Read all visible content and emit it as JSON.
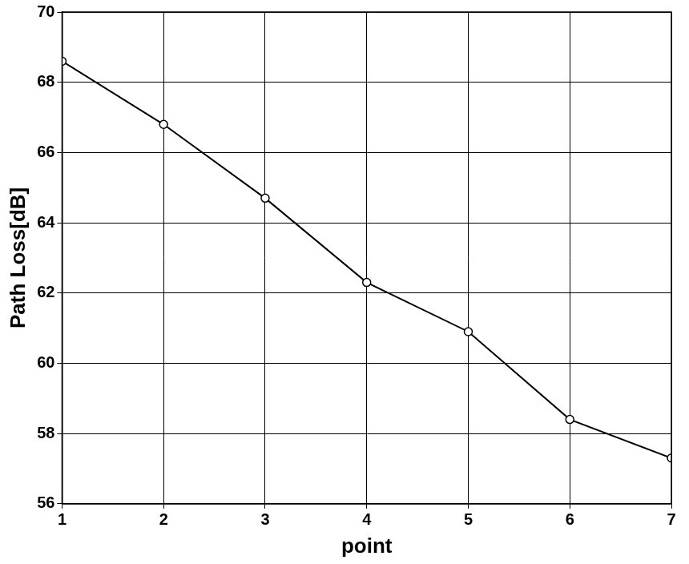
{
  "chart_data": {
    "type": "line",
    "x_label": "point",
    "y_label": "Path Loss[dB]",
    "x": [
      1,
      2,
      3,
      4,
      5,
      6,
      7
    ],
    "values": [
      68.6,
      66.8,
      64.7,
      62.3,
      60.9,
      58.4,
      57.3
    ],
    "color": "#000000",
    "marker": "circle",
    "line_style": "solid",
    "xlim": [
      1,
      7
    ],
    "xticks": [
      1,
      2,
      3,
      4,
      5,
      6,
      7
    ],
    "ylim": [
      56,
      70
    ],
    "yticks": [
      56,
      58,
      60,
      62,
      64,
      66,
      68,
      70
    ],
    "grid": true
  }
}
